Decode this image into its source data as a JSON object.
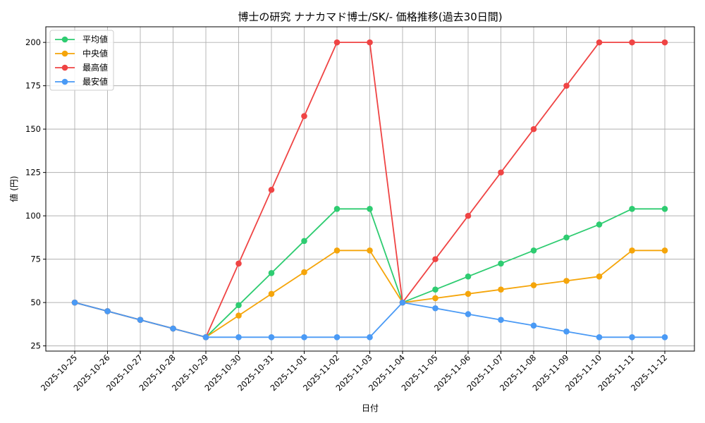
{
  "chart_data": {
    "type": "line",
    "title": "博士の研究 ナナカマド博士/SK/- 価格推移(過去30日間)",
    "xlabel": "日付",
    "ylabel": "値 (円)",
    "ylim": [
      22,
      209
    ],
    "yticks": [
      25,
      50,
      75,
      100,
      125,
      150,
      175,
      200
    ],
    "grid": true,
    "legend_position": "top-left",
    "categories": [
      "2025-10-25",
      "2025-10-26",
      "2025-10-27",
      "2025-10-28",
      "2025-10-29",
      "2025-10-30",
      "2025-10-31",
      "2025-11-01",
      "2025-11-02",
      "2025-11-03",
      "2025-11-04",
      "2025-11-05",
      "2025-11-06",
      "2025-11-07",
      "2025-11-08",
      "2025-11-09",
      "2025-11-10",
      "2025-11-11",
      "2025-11-12"
    ],
    "series": [
      {
        "name": "平均値",
        "color": "#2ecc71",
        "values": [
          50,
          45,
          40,
          35,
          30,
          48.5,
          67,
          85.5,
          104,
          104,
          50,
          57.5,
          65,
          72.5,
          80,
          87.5,
          95,
          104,
          104
        ]
      },
      {
        "name": "中央値",
        "color": "#f5a50a",
        "values": [
          50,
          45,
          40,
          35,
          30,
          42.5,
          55,
          67.5,
          80,
          80,
          50,
          52.5,
          55,
          57.5,
          60,
          62.5,
          65,
          80,
          80
        ]
      },
      {
        "name": "最高値",
        "color": "#ef4444",
        "values": [
          50,
          45,
          40,
          35,
          30,
          72.5,
          115,
          157.5,
          200,
          200,
          50,
          75,
          100,
          125,
          150,
          175,
          200,
          200,
          200
        ]
      },
      {
        "name": "最安値",
        "color": "#4a9af5",
        "values": [
          50,
          45,
          40,
          35,
          30,
          30,
          30,
          30,
          30,
          30,
          50,
          46.7,
          43.3,
          40,
          36.7,
          33.3,
          30,
          30,
          30
        ]
      }
    ]
  }
}
